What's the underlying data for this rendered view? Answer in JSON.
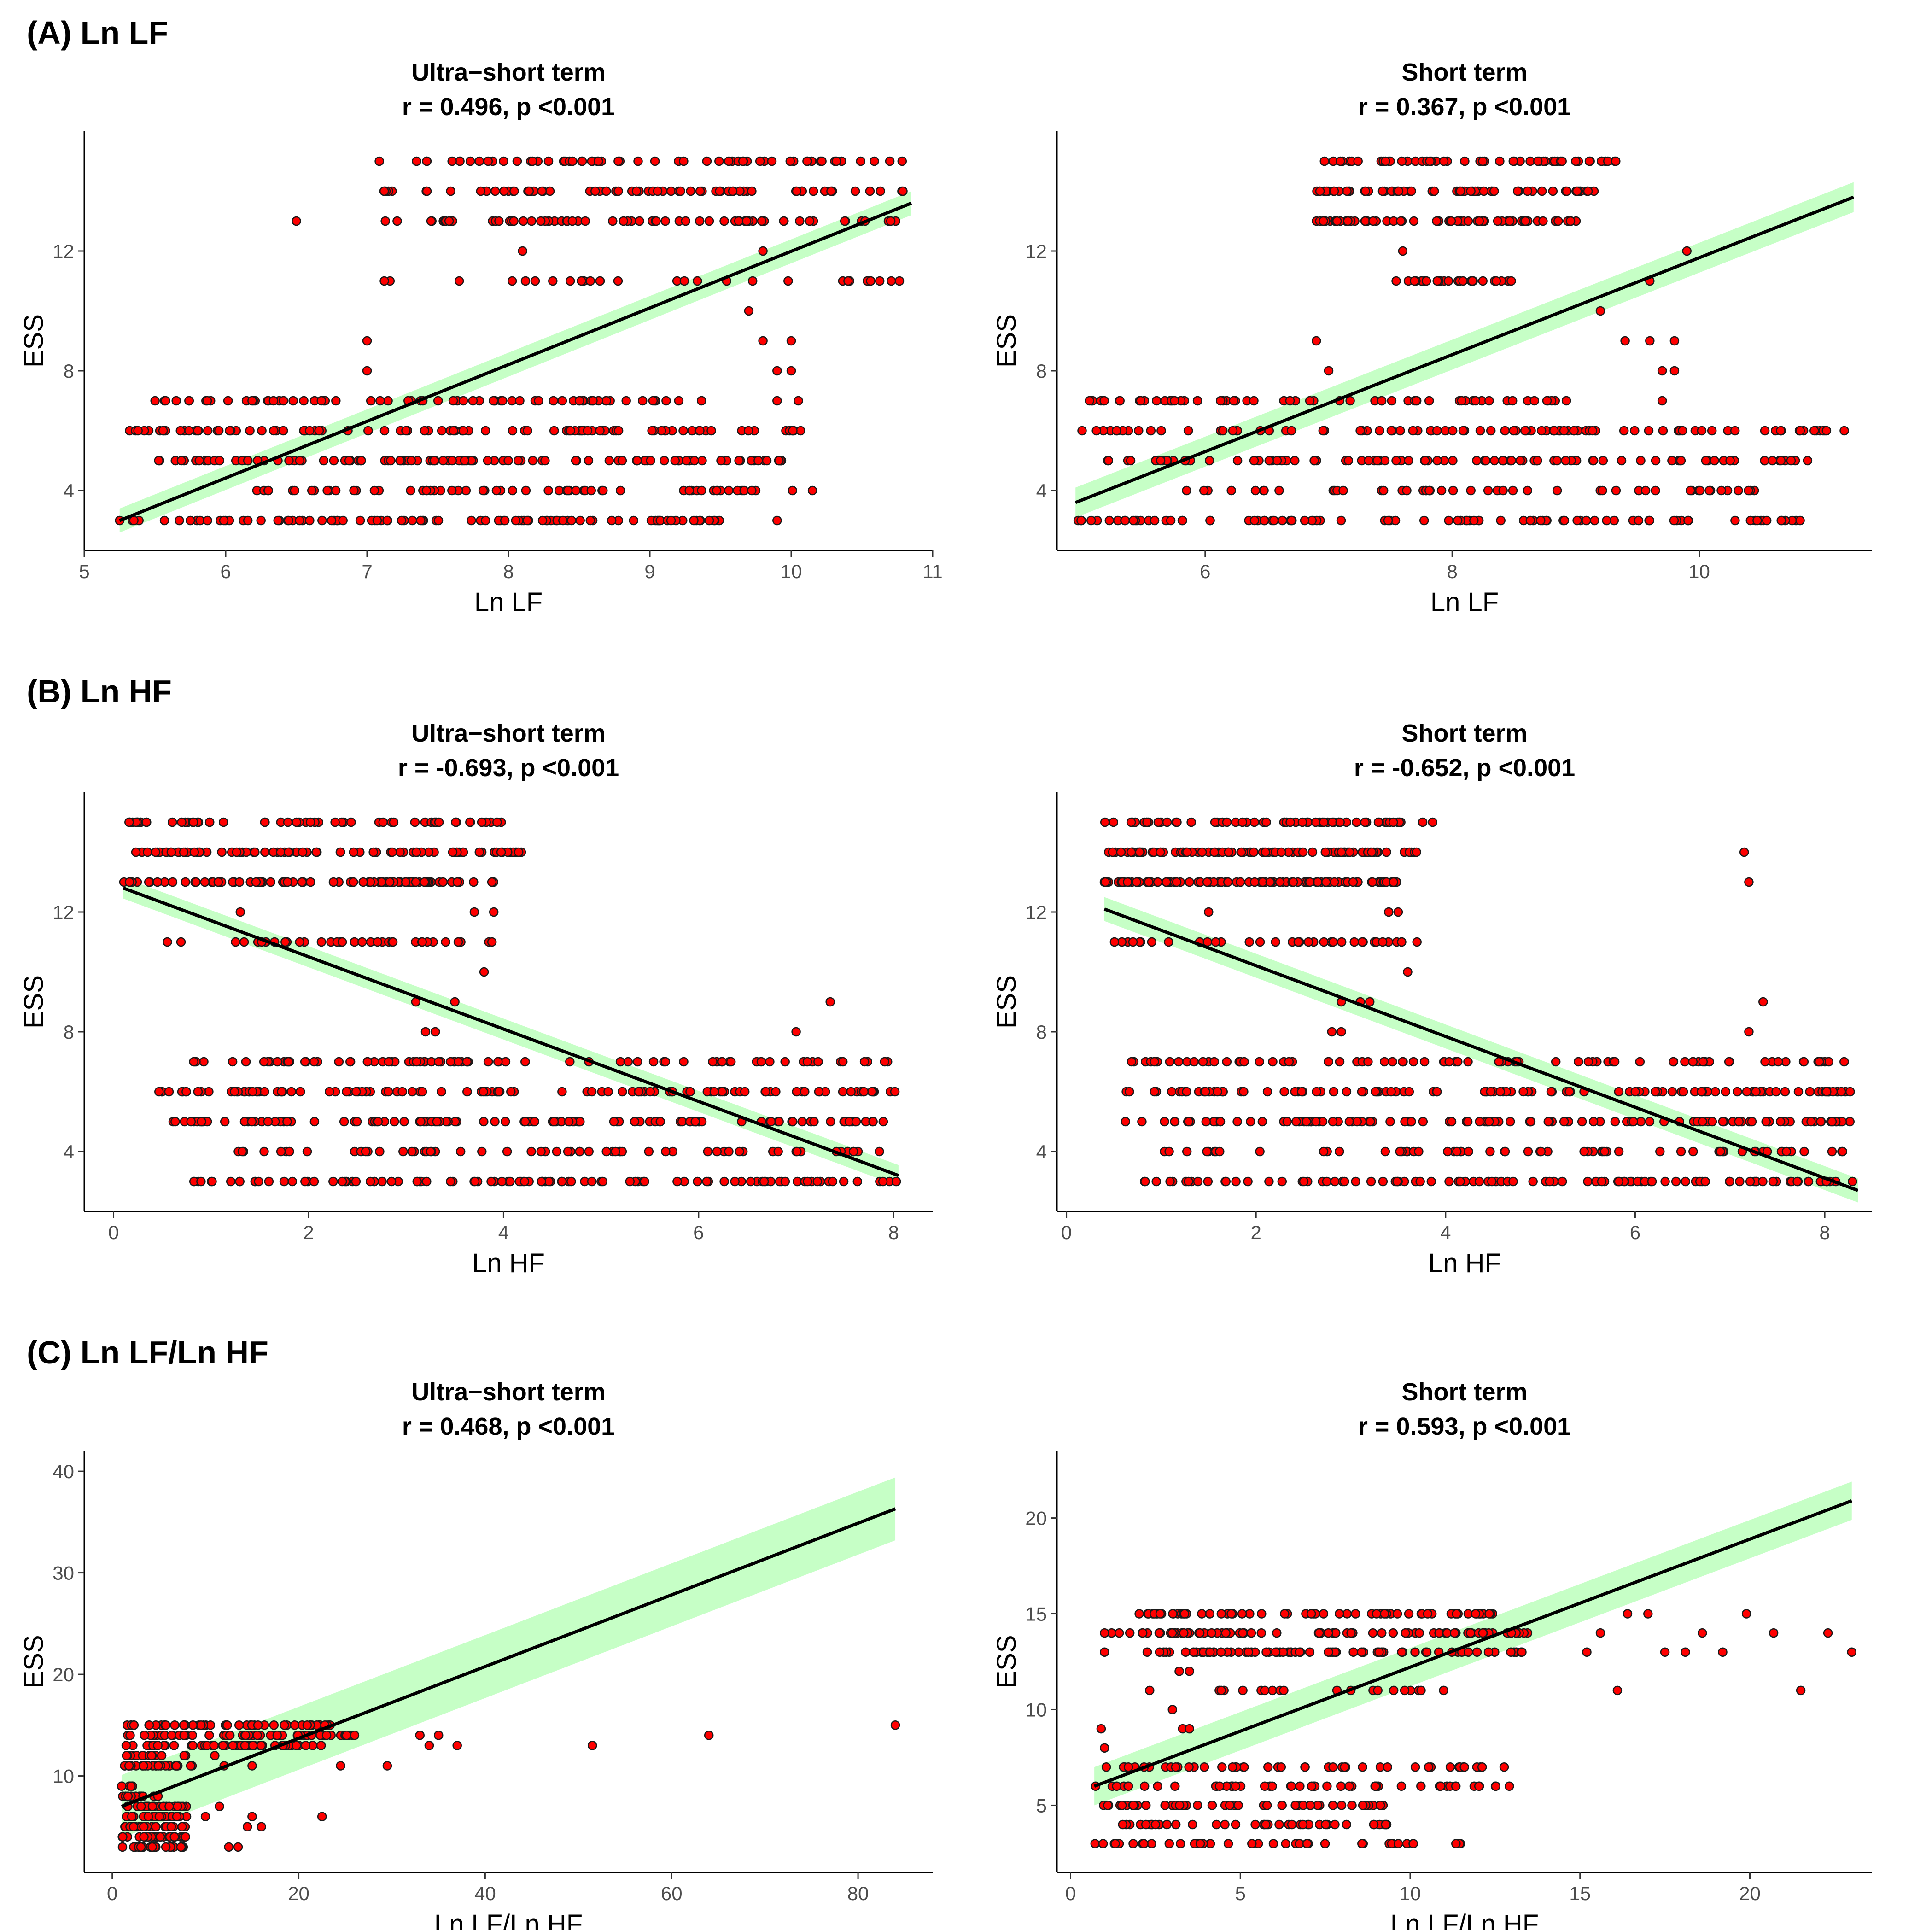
{
  "sections": [
    {
      "label": "(A) Ln LF"
    },
    {
      "label": "(B) Ln HF"
    },
    {
      "label": "(C) Ln LF/Ln HF"
    }
  ],
  "chart_data": [
    {
      "type": "scatter",
      "section": "(A) Ln LF",
      "title": "Ultra−short term",
      "subtitle": "r = 0.496, p <0.001",
      "xlabel": "Ln LF",
      "ylabel": "ESS",
      "xlim": [
        5,
        11
      ],
      "ylim": [
        2,
        16
      ],
      "xticks": [
        5,
        6,
        7,
        8,
        9,
        10,
        11
      ],
      "yticks": [
        4,
        8,
        12
      ],
      "fit": {
        "x": [
          5.25,
          10.85
        ],
        "y": [
          3.0,
          13.6
        ],
        "ci": 0.4
      },
      "clusters": [
        {
          "y": 15,
          "xr": [
            7.0,
            10.8
          ],
          "n": 60
        },
        {
          "y": 14,
          "xr": [
            7.1,
            10.8
          ],
          "n": 70
        },
        {
          "y": 13,
          "xr": [
            7.1,
            10.8
          ],
          "n": 70
        },
        {
          "y": 11,
          "xr": [
            7.0,
            10.8
          ],
          "n": 30
        },
        {
          "y": 7,
          "xr": [
            5.4,
            9.4
          ],
          "n": 70
        },
        {
          "y": 6,
          "xr": [
            5.3,
            10.1
          ],
          "n": 90
        },
        {
          "y": 5,
          "xr": [
            5.5,
            10.1
          ],
          "n": 100
        },
        {
          "y": 4,
          "xr": [
            6.2,
            10.1
          ],
          "n": 60
        },
        {
          "y": 3,
          "xr": [
            5.3,
            9.5
          ],
          "n": 90
        }
      ],
      "points": [
        [
          6.5,
          13
        ],
        [
          8.1,
          12
        ],
        [
          9.8,
          12
        ],
        [
          9.7,
          10
        ],
        [
          7.0,
          9
        ],
        [
          9.8,
          9
        ],
        [
          10.0,
          9
        ],
        [
          7.0,
          8
        ],
        [
          9.9,
          8
        ],
        [
          10.0,
          8
        ],
        [
          9.9,
          7
        ],
        [
          10.05,
          7
        ],
        [
          9.9,
          3
        ],
        [
          10.15,
          4
        ],
        [
          5.25,
          3
        ],
        [
          5.75,
          3
        ]
      ]
    },
    {
      "type": "scatter",
      "section": "(A) Ln LF",
      "title": "Short term",
      "subtitle": "r = 0.367, p <0.001",
      "xlabel": "Ln LF",
      "ylabel": "ESS",
      "xlim": [
        4.8,
        11.4
      ],
      "ylim": [
        2,
        16
      ],
      "xticks": [
        6,
        8,
        10
      ],
      "yticks": [
        4,
        8,
        12
      ],
      "fit": {
        "x": [
          4.95,
          11.25
        ],
        "y": [
          3.6,
          13.8
        ],
        "ci": 0.5
      },
      "clusters": [
        {
          "y": 15,
          "xr": [
            6.9,
            9.4
          ],
          "n": 50
        },
        {
          "y": 14,
          "xr": [
            6.9,
            9.3
          ],
          "n": 60
        },
        {
          "y": 13,
          "xr": [
            6.9,
            9.2
          ],
          "n": 60
        },
        {
          "y": 11,
          "xr": [
            7.5,
            8.5
          ],
          "n": 25
        },
        {
          "y": 7,
          "xr": [
            5.0,
            9.1
          ],
          "n": 60
        },
        {
          "y": 6,
          "xr": [
            4.95,
            11.2
          ],
          "n": 90
        },
        {
          "y": 5,
          "xr": [
            5.2,
            11.1
          ],
          "n": 90
        },
        {
          "y": 4,
          "xr": [
            5.6,
            10.6
          ],
          "n": 50
        },
        {
          "y": 3,
          "xr": [
            4.95,
            11.0
          ],
          "n": 90
        }
      ],
      "points": [
        [
          7.6,
          12
        ],
        [
          9.9,
          12
        ],
        [
          9.6,
          11
        ],
        [
          9.2,
          10
        ],
        [
          6.9,
          9
        ],
        [
          9.4,
          9
        ],
        [
          9.6,
          9
        ],
        [
          9.8,
          9
        ],
        [
          7.0,
          8
        ],
        [
          9.7,
          8
        ],
        [
          9.8,
          8
        ],
        [
          9.7,
          7
        ]
      ]
    },
    {
      "type": "scatter",
      "section": "(B) Ln HF",
      "title": "Ultra−short term",
      "subtitle": "r = -0.693, p <0.001",
      "xlabel": "Ln HF",
      "ylabel": "ESS",
      "xlim": [
        -0.3,
        8.4
      ],
      "ylim": [
        2,
        16
      ],
      "xticks": [
        0,
        2,
        4,
        6,
        8
      ],
      "yticks": [
        4,
        8,
        12
      ],
      "fit": {
        "x": [
          0.1,
          8.05
        ],
        "y": [
          12.8,
          3.2
        ],
        "ci": 0.35
      },
      "clusters": [
        {
          "y": 15,
          "xr": [
            0.1,
            4.2
          ],
          "n": 60
        },
        {
          "y": 14,
          "xr": [
            0.1,
            4.2
          ],
          "n": 80
        },
        {
          "y": 13,
          "xr": [
            0.1,
            3.9
          ],
          "n": 80
        },
        {
          "y": 11,
          "xr": [
            0.3,
            3.9
          ],
          "n": 35
        },
        {
          "y": 7,
          "xr": [
            0.8,
            8.05
          ],
          "n": 80
        },
        {
          "y": 6,
          "xr": [
            0.4,
            8.05
          ],
          "n": 110
        },
        {
          "y": 5,
          "xr": [
            0.6,
            8.0
          ],
          "n": 110
        },
        {
          "y": 4,
          "xr": [
            1.2,
            8.0
          ],
          "n": 60
        },
        {
          "y": 3,
          "xr": [
            0.7,
            8.05
          ],
          "n": 100
        }
      ],
      "points": [
        [
          1.3,
          12
        ],
        [
          3.7,
          12
        ],
        [
          3.9,
          12
        ],
        [
          3.8,
          10
        ],
        [
          3.1,
          9
        ],
        [
          3.5,
          9
        ],
        [
          3.2,
          8
        ],
        [
          3.3,
          8
        ],
        [
          7.0,
          8
        ],
        [
          7.35,
          9
        ]
      ]
    },
    {
      "type": "scatter",
      "section": "(B) Ln HF",
      "title": "Short term",
      "subtitle": "r = -0.652, p <0.001",
      "xlabel": "Ln HF",
      "ylabel": "ESS",
      "xlim": [
        -0.1,
        8.5
      ],
      "ylim": [
        2,
        16
      ],
      "xticks": [
        0,
        2,
        4,
        6,
        8
      ],
      "yticks": [
        4,
        8,
        12
      ],
      "fit": {
        "x": [
          0.4,
          8.35
        ],
        "y": [
          12.1,
          2.7
        ],
        "ci": 0.4
      },
      "clusters": [
        {
          "y": 15,
          "xr": [
            0.4,
            3.9
          ],
          "n": 60
        },
        {
          "y": 14,
          "xr": [
            0.4,
            3.7
          ],
          "n": 90
        },
        {
          "y": 13,
          "xr": [
            0.4,
            3.5
          ],
          "n": 90
        },
        {
          "y": 11,
          "xr": [
            0.4,
            3.7
          ],
          "n": 35
        },
        {
          "y": 7,
          "xr": [
            0.6,
            8.3
          ],
          "n": 80
        },
        {
          "y": 6,
          "xr": [
            0.6,
            8.3
          ],
          "n": 110
        },
        {
          "y": 5,
          "xr": [
            0.6,
            8.3
          ],
          "n": 110
        },
        {
          "y": 4,
          "xr": [
            0.8,
            8.35
          ],
          "n": 60
        },
        {
          "y": 3,
          "xr": [
            0.7,
            8.35
          ],
          "n": 100
        }
      ],
      "points": [
        [
          1.5,
          12
        ],
        [
          3.4,
          12
        ],
        [
          3.5,
          12
        ],
        [
          3.6,
          10
        ],
        [
          2.9,
          9
        ],
        [
          3.1,
          9
        ],
        [
          3.2,
          9
        ],
        [
          2.8,
          8
        ],
        [
          2.9,
          8
        ],
        [
          7.15,
          14
        ],
        [
          7.2,
          13
        ],
        [
          7.35,
          9
        ],
        [
          7.2,
          8
        ]
      ]
    },
    {
      "type": "scatter",
      "section": "(C) Ln LF/Ln HF",
      "title": "Ultra−short term",
      "subtitle": "r = 0.468, p <0.001",
      "xlabel": "Ln LF/Ln HF",
      "ylabel": "ESS",
      "xlim": [
        -3,
        88
      ],
      "ylim": [
        0.5,
        42
      ],
      "xticks": [
        0,
        20,
        40,
        60,
        80
      ],
      "yticks": [
        10,
        20,
        30,
        40
      ],
      "fit": {
        "x": [
          1.0,
          84.0
        ],
        "y": [
          7.0,
          36.3
        ],
        "ci": 3.1
      },
      "clusters": [
        {
          "y": 15,
          "xr": [
            1.5,
            24
          ],
          "n": 50
        },
        {
          "y": 14,
          "xr": [
            1.5,
            26
          ],
          "n": 60
        },
        {
          "y": 13,
          "xr": [
            1.2,
            23
          ],
          "n": 50
        },
        {
          "y": 12,
          "xr": [
            1.5,
            8
          ],
          "n": 15
        },
        {
          "y": 11,
          "xr": [
            1.3,
            9
          ],
          "n": 25
        },
        {
          "y": 9,
          "xr": [
            1.0,
            3
          ],
          "n": 4
        },
        {
          "y": 8,
          "xr": [
            1.0,
            5
          ],
          "n": 12
        },
        {
          "y": 7,
          "xr": [
            1.0,
            8
          ],
          "n": 25
        },
        {
          "y": 6,
          "xr": [
            1.0,
            8
          ],
          "n": 25
        },
        {
          "y": 5,
          "xr": [
            1.0,
            8
          ],
          "n": 25
        },
        {
          "y": 4,
          "xr": [
            1.0,
            8
          ],
          "n": 25
        },
        {
          "y": 3,
          "xr": [
            1.0,
            8
          ],
          "n": 25
        }
      ],
      "points": [
        [
          84,
          15
        ],
        [
          64,
          14
        ],
        [
          51.5,
          13
        ],
        [
          35,
          14
        ],
        [
          33,
          14
        ],
        [
          34,
          13
        ],
        [
          37,
          13
        ],
        [
          24.5,
          11
        ],
        [
          29.5,
          11
        ],
        [
          22.5,
          6
        ],
        [
          10,
          6
        ],
        [
          15,
          6
        ],
        [
          14.5,
          5
        ],
        [
          16,
          5
        ],
        [
          11.5,
          7
        ],
        [
          12.5,
          3
        ],
        [
          13.5,
          3
        ],
        [
          15,
          11
        ],
        [
          11,
          12
        ],
        [
          12,
          11
        ]
      ]
    },
    {
      "type": "scatter",
      "section": "(C) Ln LF/Ln HF",
      "title": "Short term",
      "subtitle": "r = 0.593, p <0.001",
      "xlabel": "Ln LF/Ln HF",
      "ylabel": "ESS",
      "xlim": [
        -0.4,
        23.6
      ],
      "ylim": [
        1.5,
        23.5
      ],
      "xticks": [
        0,
        5,
        10,
        15,
        20
      ],
      "yticks": [
        5,
        10,
        15,
        20
      ],
      "fit": {
        "x": [
          0.7,
          23.0
        ],
        "y": [
          6.0,
          20.9
        ],
        "ci": 1.0
      },
      "clusters": [
        {
          "y": 15,
          "xr": [
            2.0,
            13.0
          ],
          "n": 60
        },
        {
          "y": 14,
          "xr": [
            1.0,
            13.5
          ],
          "n": 80
        },
        {
          "y": 13,
          "xr": [
            2.2,
            13.7
          ],
          "n": 70
        },
        {
          "y": 11,
          "xr": [
            2.0,
            11.5
          ],
          "n": 20
        },
        {
          "y": 7,
          "xr": [
            0.7,
            12.8
          ],
          "n": 45
        },
        {
          "y": 6,
          "xr": [
            0.7,
            13.0
          ],
          "n": 50
        },
        {
          "y": 5,
          "xr": [
            0.7,
            9.5
          ],
          "n": 45
        },
        {
          "y": 4,
          "xr": [
            0.7,
            9.5
          ],
          "n": 40
        },
        {
          "y": 3,
          "xr": [
            0.7,
            11.5
          ],
          "n": 40
        }
      ],
      "points": [
        [
          23,
          13
        ],
        [
          21.5,
          11
        ],
        [
          22.3,
          14
        ],
        [
          20.7,
          14
        ],
        [
          19.9,
          15
        ],
        [
          19.2,
          13
        ],
        [
          18.6,
          14
        ],
        [
          18.1,
          13
        ],
        [
          17.5,
          13
        ],
        [
          17.0,
          15
        ],
        [
          16.4,
          15
        ],
        [
          16.1,
          11
        ],
        [
          15.6,
          14
        ],
        [
          15.2,
          13
        ],
        [
          3.0,
          10
        ],
        [
          3.2,
          12
        ],
        [
          3.5,
          12
        ],
        [
          3.3,
          9
        ],
        [
          3.5,
          9
        ],
        [
          0.9,
          9
        ],
        [
          1.0,
          8
        ],
        [
          1.0,
          14
        ],
        [
          1.0,
          13
        ]
      ]
    }
  ]
}
